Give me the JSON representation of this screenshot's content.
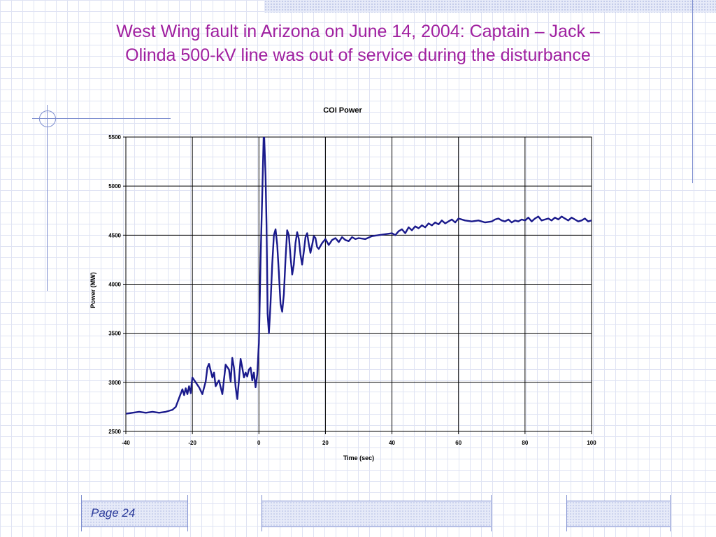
{
  "slide": {
    "title_line1": "West Wing fault in Arizona on June 14, 2004: Captain – Jack –",
    "title_line2": "Olinda 500-kV line was out of service during the disturbance",
    "page_label": "Page 24"
  },
  "colors": {
    "title": "#a020a0",
    "series": "#1a1a8c",
    "grid": "#000000",
    "decor": "#7f8fd0"
  },
  "chart_data": {
    "type": "line",
    "title": "COI Power",
    "xlabel": "Time (sec)",
    "ylabel": "Power (MW)",
    "xlim": [
      -40,
      100
    ],
    "ylim": [
      2500,
      5500
    ],
    "x_ticks": [
      -40,
      -20,
      0,
      20,
      40,
      60,
      80,
      100
    ],
    "x_tick_labels": [
      "-40",
      "-20",
      "0",
      "20",
      "40",
      "60",
      "80",
      "100"
    ],
    "y_ticks": [
      2500,
      3000,
      3500,
      4000,
      4500,
      5000,
      5500
    ],
    "y_tick_labels": [
      "2500",
      "3000",
      "3500",
      "4000",
      "4500",
      "5000",
      "5500"
    ],
    "grid": true,
    "legend": "none",
    "series": [
      {
        "x": [
          -40,
          -38,
          -36,
          -34,
          -32,
          -30,
          -28,
          -26,
          -25,
          -24,
          -23,
          -22.5,
          -22,
          -21.5,
          -21,
          -20.5,
          -20,
          -19,
          -18,
          -17,
          -16,
          -15.5,
          -15,
          -14.5,
          -14,
          -13.5,
          -13,
          -12,
          -11,
          -10,
          -9,
          -8.5,
          -8,
          -7.5,
          -7,
          -6.5,
          -6,
          -5.5,
          -5,
          -4.5,
          -4,
          -3.5,
          -3,
          -2.5,
          -2,
          -1.5,
          -1,
          -0.5,
          0,
          0.5,
          1,
          1.5,
          2,
          2.3,
          2.6,
          3,
          3.5,
          4,
          4.5,
          5,
          5.5,
          6,
          6.5,
          7,
          7.5,
          8,
          8.5,
          9,
          9.5,
          10,
          10.5,
          11,
          11.5,
          12,
          12.5,
          13,
          13.5,
          14,
          14.5,
          15,
          15.5,
          16,
          16.5,
          17,
          17.5,
          18,
          19,
          20,
          21,
          22,
          23,
          24,
          25,
          26,
          27,
          28,
          29,
          30,
          32,
          34,
          36,
          38,
          40,
          41,
          42,
          43,
          44,
          45,
          46,
          47,
          48,
          49,
          50,
          51,
          52,
          53,
          54,
          55,
          56,
          57,
          58,
          59,
          60,
          62,
          64,
          66,
          68,
          70,
          71,
          72,
          73,
          74,
          75,
          76,
          77,
          78,
          79,
          80,
          81,
          82,
          83,
          84,
          85,
          86,
          87,
          88,
          89,
          90,
          91,
          92,
          93,
          94,
          95,
          96,
          97,
          98,
          99,
          100
        ],
        "y": [
          2680,
          2690,
          2700,
          2690,
          2700,
          2690,
          2700,
          2720,
          2750,
          2840,
          2930,
          2870,
          2940,
          2880,
          2960,
          2890,
          3050,
          3000,
          2950,
          2880,
          3010,
          3150,
          3190,
          3120,
          3050,
          3100,
          2960,
          3020,
          2880,
          3180,
          3130,
          3010,
          3250,
          3150,
          2950,
          2830,
          3020,
          3240,
          3150,
          3050,
          3100,
          3060,
          3130,
          3150,
          3020,
          3100,
          2950,
          3080,
          3400,
          4250,
          4900,
          5600,
          5100,
          4600,
          3700,
          3500,
          3800,
          4200,
          4500,
          4560,
          4400,
          4120,
          3800,
          3720,
          3900,
          4250,
          4550,
          4500,
          4280,
          4100,
          4200,
          4420,
          4530,
          4460,
          4300,
          4200,
          4330,
          4480,
          4520,
          4410,
          4320,
          4400,
          4490,
          4470,
          4380,
          4360,
          4420,
          4460,
          4400,
          4450,
          4470,
          4430,
          4480,
          4450,
          4440,
          4480,
          4460,
          4470,
          4460,
          4490,
          4500,
          4510,
          4520,
          4500,
          4540,
          4560,
          4520,
          4580,
          4550,
          4590,
          4570,
          4600,
          4580,
          4620,
          4600,
          4630,
          4610,
          4650,
          4620,
          4640,
          4660,
          4630,
          4670,
          4650,
          4640,
          4650,
          4630,
          4640,
          4660,
          4670,
          4650,
          4640,
          4660,
          4630,
          4650,
          4640,
          4660,
          4650,
          4680,
          4640,
          4670,
          4690,
          4650,
          4660,
          4670,
          4650,
          4680,
          4660,
          4690,
          4670,
          4650,
          4680,
          4660,
          4640,
          4650,
          4670,
          4640,
          4650
        ]
      }
    ]
  }
}
